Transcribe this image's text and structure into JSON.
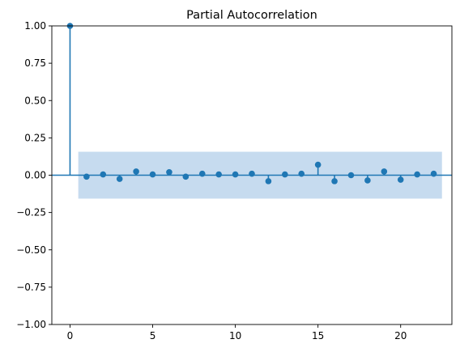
{
  "chart_data": {
    "type": "stem",
    "title": "Partial Autocorrelation",
    "xlabel": "",
    "ylabel": "",
    "xlim": [
      -1.1,
      23.1
    ],
    "ylim": [
      -1.0,
      1.0
    ],
    "x_ticks": [
      0,
      5,
      10,
      15,
      20
    ],
    "y_ticks": [
      -1.0,
      -0.75,
      -0.5,
      -0.25,
      0.0,
      0.25,
      0.5,
      0.75,
      1.0
    ],
    "x_tick_labels": [
      "0",
      "5",
      "10",
      "15",
      "20"
    ],
    "y_tick_labels": [
      "−1.00",
      "−0.75",
      "−0.50",
      "−0.25",
      "0.00",
      "0.25",
      "0.50",
      "0.75",
      "1.00"
    ],
    "confidence_band": {
      "x_start": 0.5,
      "x_end": 22.5,
      "lower": -0.157,
      "upper": 0.157
    },
    "grid": false,
    "x": [
      0,
      1,
      2,
      3,
      4,
      5,
      6,
      7,
      8,
      9,
      10,
      11,
      12,
      13,
      14,
      15,
      16,
      17,
      18,
      19,
      20,
      21,
      22
    ],
    "values": [
      1.0,
      -0.01,
      0.005,
      -0.025,
      0.025,
      0.005,
      0.02,
      -0.01,
      0.01,
      0.005,
      0.005,
      0.01,
      -0.04,
      0.005,
      0.01,
      0.07,
      -0.04,
      0.0,
      -0.035,
      0.025,
      -0.03,
      0.005,
      0.01
    ],
    "colors": {
      "marker": "#1f77b4",
      "band": "#c6dbef",
      "zero_line": "#1f77b4"
    }
  }
}
